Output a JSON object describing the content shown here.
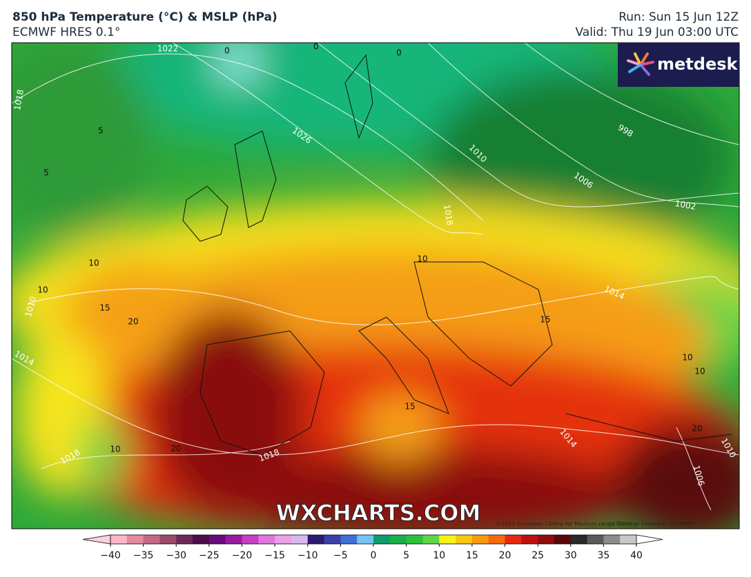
{
  "header": {
    "title": "850 hPa Temperature (°C) & MSLP (hPa)",
    "subtitle": "ECMWF HRES 0.1°",
    "run": "Run: Sun 15 Jun 12Z",
    "valid": "Valid: Thu 19 Jun 03:00 UTC"
  },
  "logo": "metdesk",
  "watermark": "WXCHARTS.COM",
  "copyright": "©2025 European Centre for Medium-range Weather Forecasts (ECMWF)",
  "isobar_labels": [
    "1022",
    "1018",
    "1026",
    "1010",
    "1006",
    "998",
    "1002",
    "1018",
    "1014",
    "1010",
    "1014",
    "1018",
    "1018",
    "1014",
    "1010",
    "1006"
  ],
  "temperature_labels": [
    "0",
    "0",
    "0",
    "5",
    "5",
    "10",
    "10",
    "10",
    "15",
    "20",
    "15",
    "10",
    "10",
    "15",
    "10",
    "20",
    "20"
  ],
  "colorbar": {
    "range": [
      -40,
      40
    ],
    "ticks": [
      {
        "value": -40,
        "label": "−40"
      },
      {
        "value": -35,
        "label": "−35"
      },
      {
        "value": -30,
        "label": "−30"
      },
      {
        "value": -25,
        "label": "−25"
      },
      {
        "value": -20,
        "label": "−20"
      },
      {
        "value": -15,
        "label": "−15"
      },
      {
        "value": -10,
        "label": "−10"
      },
      {
        "value": -5,
        "label": "−5"
      },
      0,
      5,
      10,
      15,
      20,
      25,
      30,
      35,
      40
    ],
    "colors": [
      "#f9b7c7",
      "#e7899e",
      "#c56a86",
      "#9c4a6a",
      "#6e2a55",
      "#4b0f4a",
      "#6c0c7a",
      "#9b1aa3",
      "#c63fc5",
      "#e077dc",
      "#eaa1e8",
      "#d7b9f0",
      "#2b1a6e",
      "#3b3fa8",
      "#3e6fd6",
      "#73c4f6",
      "#0e9c6a",
      "#17b04a",
      "#2bc23a",
      "#5fd447",
      "#f6f21a",
      "#f9c712",
      "#f79a10",
      "#f46a0f",
      "#e8280e",
      "#bb1211",
      "#8e0d0f",
      "#5a0909",
      "#2a2a2a",
      "#5a5a5a",
      "#8c8c8c",
      "#c8c8c8"
    ],
    "under_color": "#fbd0dc",
    "over_color": "#ffffff"
  }
}
